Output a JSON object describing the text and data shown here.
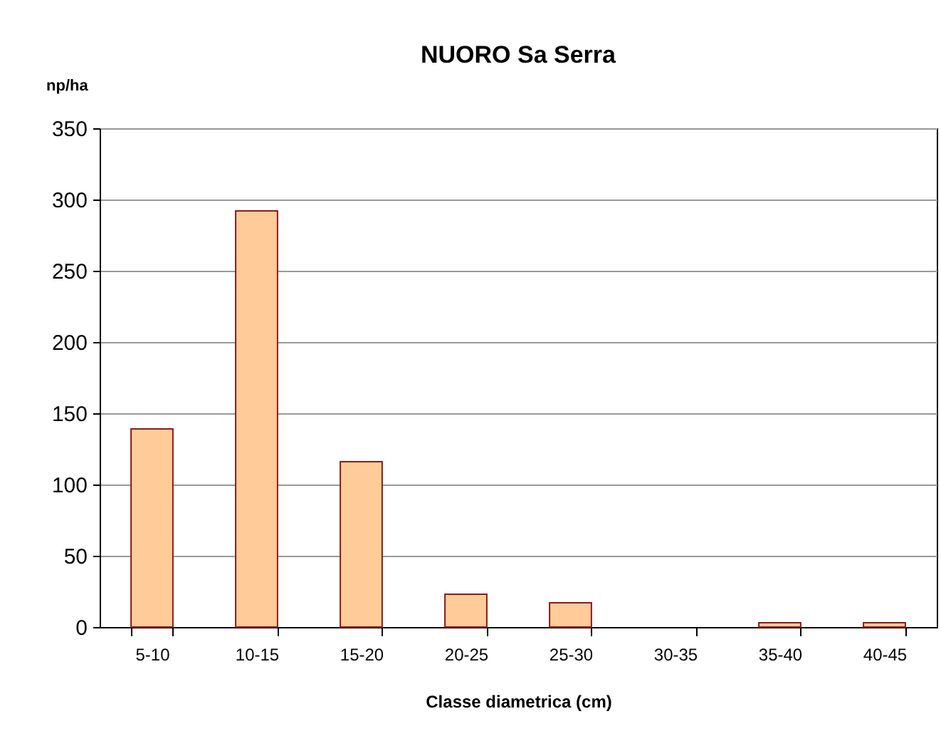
{
  "chart_data": {
    "type": "bar",
    "title": "NUORO Sa Serra",
    "ylabel": "np/ha",
    "xlabel": "Classe diametrica (cm)",
    "categories": [
      "5-10",
      "10-15",
      "15-20",
      "20-25",
      "25-30",
      "30-35",
      "35-40",
      "40-45"
    ],
    "series": [
      {
        "color": "#ffcc99",
        "values": [
          139,
          292,
          116,
          23,
          17,
          0,
          3,
          3
        ]
      }
    ],
    "ylim": [
      0,
      350
    ],
    "yticks": [
      0,
      50,
      100,
      150,
      200,
      250,
      300,
      350
    ],
    "grid": "y",
    "legend": false
  }
}
